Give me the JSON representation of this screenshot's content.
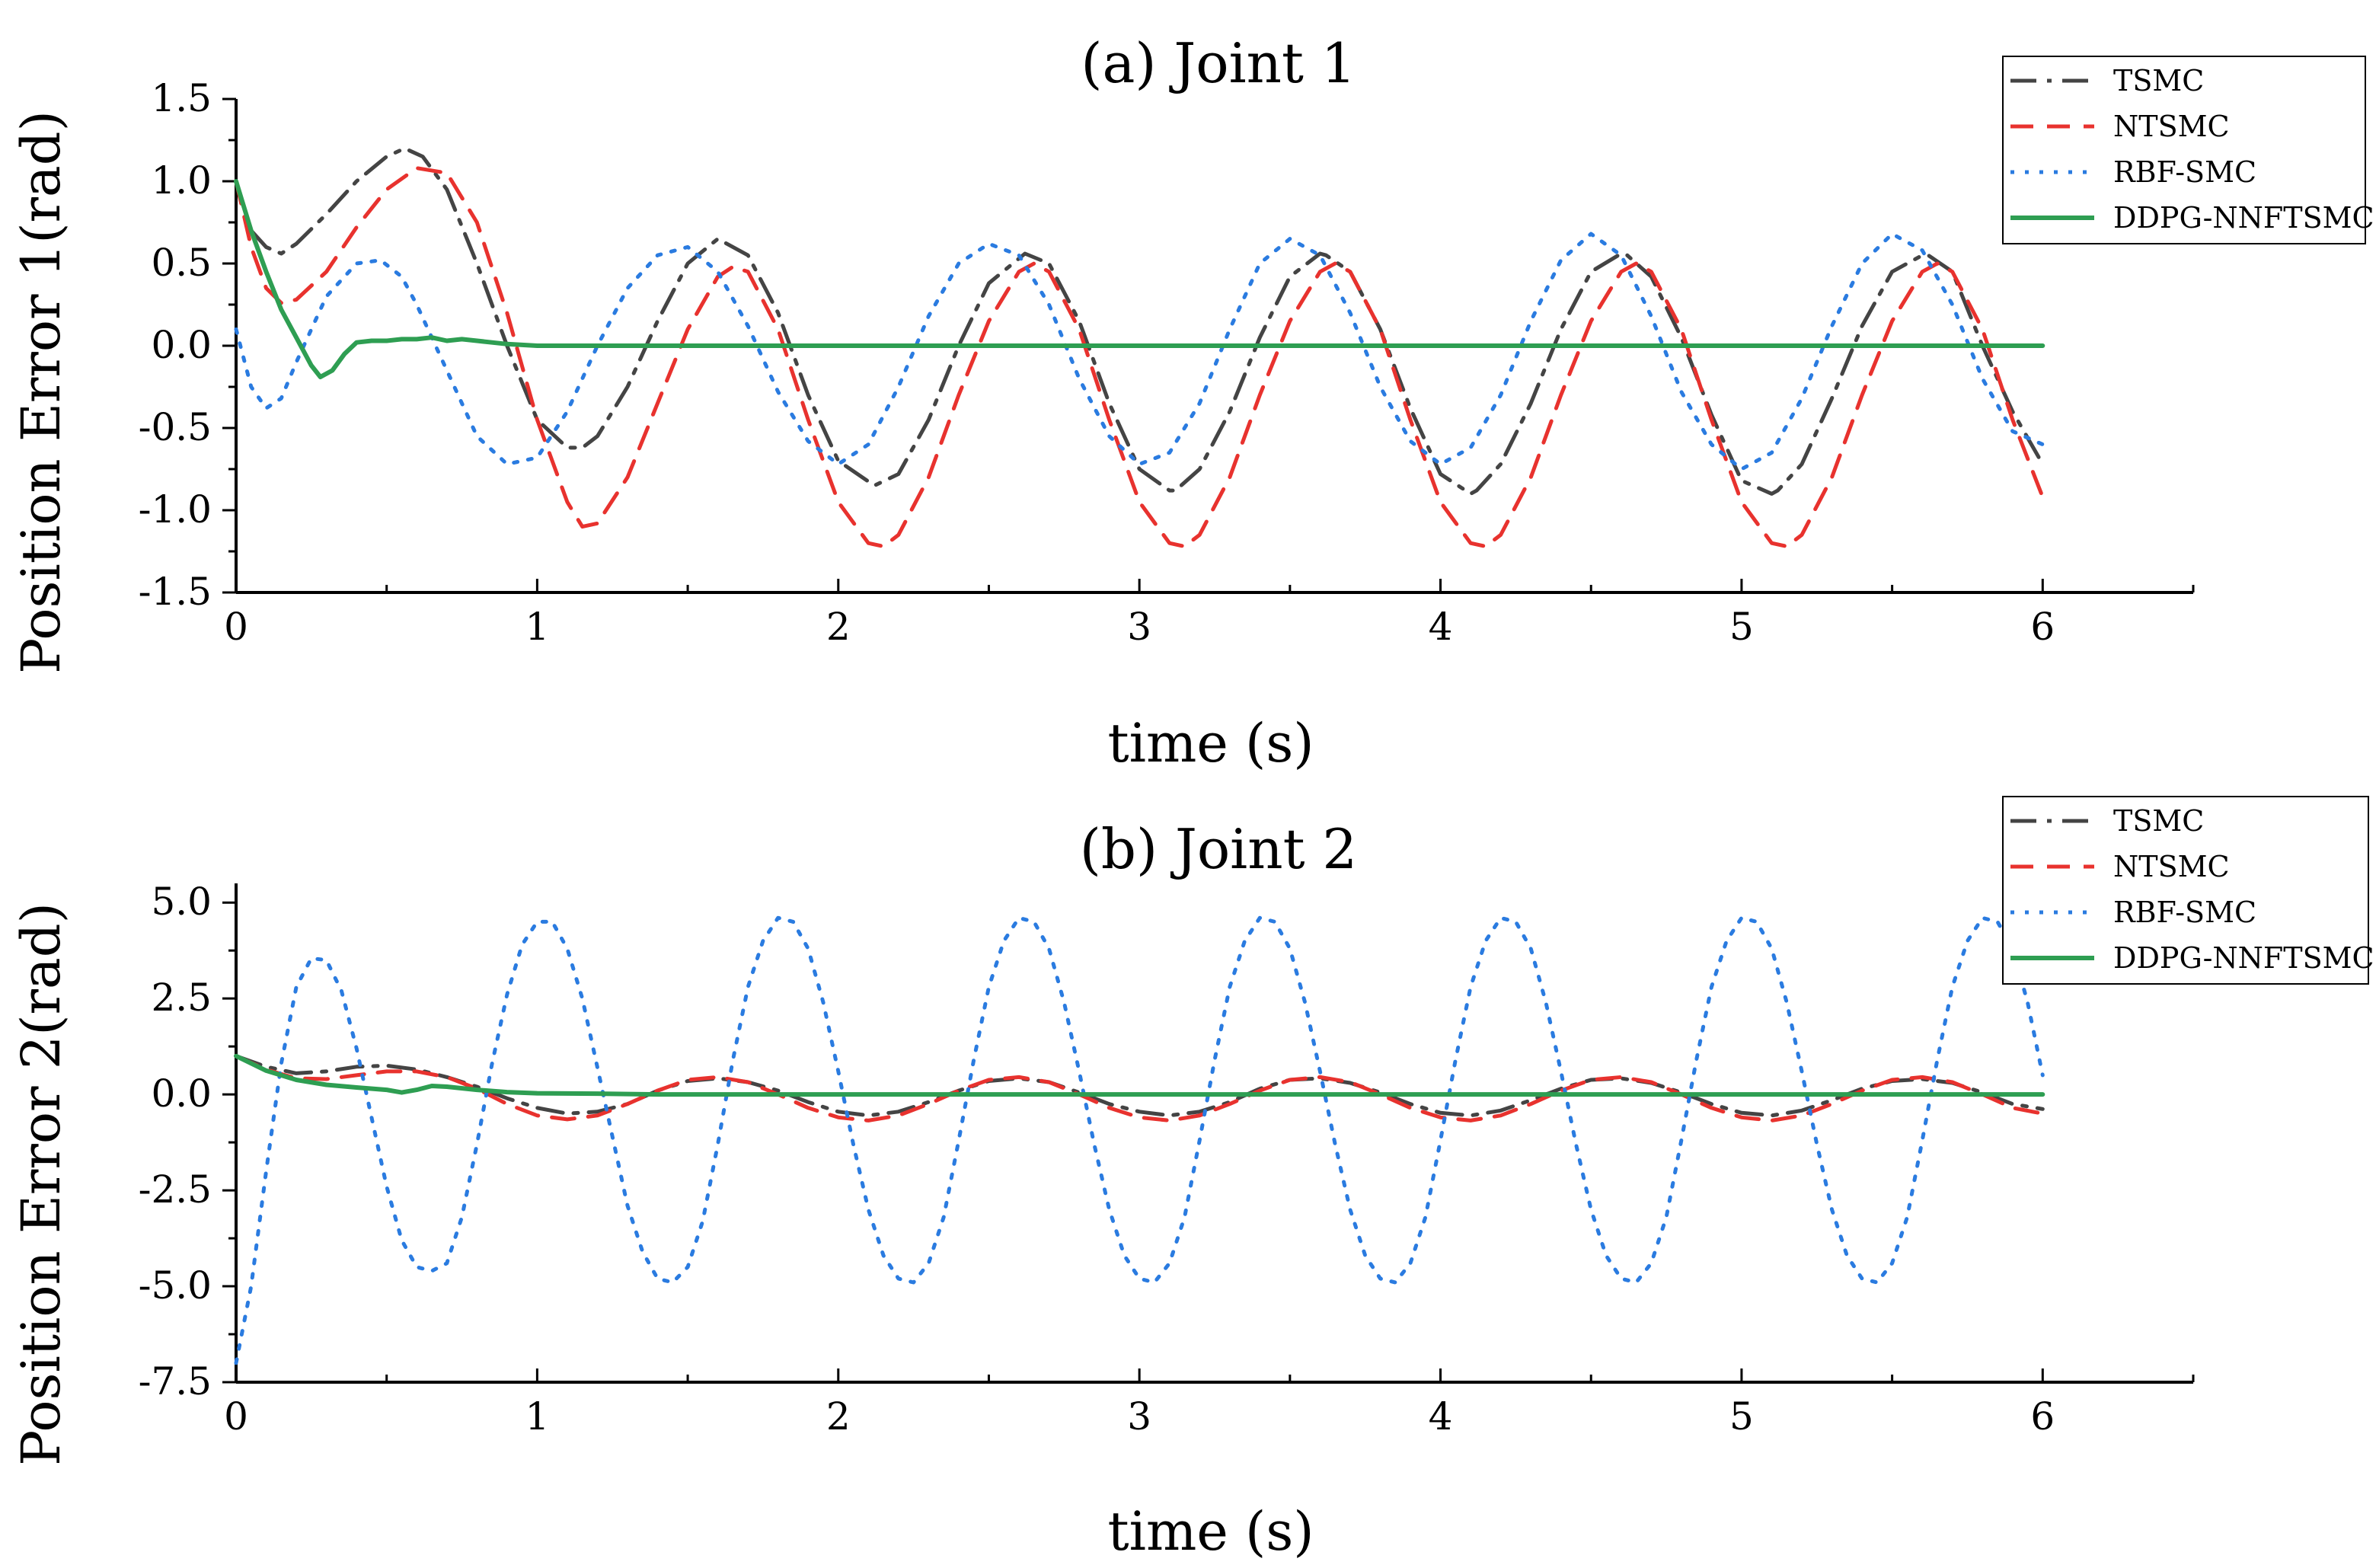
{
  "figure": {
    "colors": {
      "TSMC": "#444444",
      "NTSMC": "#e8322e",
      "RBF-SMC": "#2a7be0",
      "DDPG-NNFTSMC": "#2e9e52"
    },
    "dash_styles": {
      "TSMC": "dashdot",
      "NTSMC": "dashed",
      "RBF-SMC": "dotted",
      "DDPG-NNFTSMC": "solid"
    }
  },
  "chart_data": [
    {
      "type": "line",
      "title": "(a) Joint 1",
      "xlabel": "time (s)",
      "ylabel": "Position Error 1(rad)",
      "xlim": [
        0,
        6.5
      ],
      "ylim": [
        -1.5,
        1.5
      ],
      "xticks": [
        "0",
        "1",
        "2",
        "3",
        "4",
        "5",
        "6"
      ],
      "yticks": [
        "1.5",
        "1.0",
        "0.5",
        "0.0",
        "-0.5",
        "-1.0",
        "-1.5"
      ],
      "ytick_values": [
        1.5,
        1.0,
        0.5,
        0.0,
        -0.5,
        -1.0,
        -1.5
      ],
      "legend_position": "top-right",
      "series": [
        {
          "name": "TSMC",
          "x": [
            0,
            0.05,
            0.1,
            0.15,
            0.2,
            0.3,
            0.4,
            0.5,
            0.56,
            0.62,
            0.7,
            0.8,
            0.9,
            1.0,
            1.1,
            1.15,
            1.2,
            1.3,
            1.4,
            1.5,
            1.6,
            1.7,
            1.8,
            1.9,
            2.0,
            2.12,
            2.2,
            2.3,
            2.4,
            2.5,
            2.62,
            2.7,
            2.8,
            2.9,
            3.0,
            3.1,
            3.12,
            3.2,
            3.3,
            3.4,
            3.5,
            3.6,
            3.62,
            3.7,
            3.8,
            3.9,
            4.0,
            4.1,
            4.12,
            4.2,
            4.3,
            4.4,
            4.5,
            4.6,
            4.62,
            4.7,
            4.8,
            4.9,
            5.0,
            5.1,
            5.12,
            5.2,
            5.3,
            5.4,
            5.5,
            5.6,
            5.62,
            5.7,
            5.8,
            5.9,
            6.0
          ],
          "y": [
            1.0,
            0.7,
            0.6,
            0.56,
            0.62,
            0.8,
            1.0,
            1.15,
            1.2,
            1.15,
            0.95,
            0.5,
            0.0,
            -0.45,
            -0.62,
            -0.62,
            -0.55,
            -0.25,
            0.15,
            0.5,
            0.65,
            0.55,
            0.2,
            -0.3,
            -0.7,
            -0.85,
            -0.78,
            -0.45,
            0.0,
            0.38,
            0.56,
            0.5,
            0.15,
            -0.35,
            -0.75,
            -0.88,
            -0.88,
            -0.75,
            -0.4,
            0.05,
            0.42,
            0.56,
            0.55,
            0.45,
            0.1,
            -0.38,
            -0.78,
            -0.9,
            -0.88,
            -0.72,
            -0.35,
            0.1,
            0.45,
            0.56,
            0.55,
            0.42,
            0.05,
            -0.42,
            -0.82,
            -0.9,
            -0.88,
            -0.72,
            -0.32,
            0.12,
            0.45,
            0.55,
            0.55,
            0.45,
            0.0,
            -0.4,
            -0.72
          ]
        },
        {
          "name": "NTSMC",
          "x": [
            0,
            0.05,
            0.1,
            0.15,
            0.2,
            0.3,
            0.4,
            0.5,
            0.6,
            0.7,
            0.8,
            0.9,
            1.0,
            1.1,
            1.15,
            1.2,
            1.3,
            1.4,
            1.5,
            1.6,
            1.65,
            1.7,
            1.8,
            1.9,
            2.0,
            2.1,
            2.15,
            2.2,
            2.3,
            2.4,
            2.5,
            2.6,
            2.65,
            2.7,
            2.8,
            2.9,
            3.0,
            3.1,
            3.15,
            3.2,
            3.3,
            3.4,
            3.5,
            3.6,
            3.65,
            3.7,
            3.8,
            3.9,
            4.0,
            4.1,
            4.15,
            4.2,
            4.3,
            4.4,
            4.5,
            4.6,
            4.65,
            4.7,
            4.8,
            4.9,
            5.0,
            5.1,
            5.15,
            5.2,
            5.3,
            5.4,
            5.5,
            5.6,
            5.65,
            5.7,
            5.8,
            5.9,
            6.0
          ],
          "y": [
            1.0,
            0.6,
            0.35,
            0.26,
            0.28,
            0.45,
            0.72,
            0.95,
            1.08,
            1.05,
            0.75,
            0.2,
            -0.45,
            -0.95,
            -1.1,
            -1.08,
            -0.8,
            -0.35,
            0.1,
            0.42,
            0.48,
            0.45,
            0.1,
            -0.45,
            -0.95,
            -1.2,
            -1.22,
            -1.15,
            -0.8,
            -0.3,
            0.15,
            0.45,
            0.5,
            0.45,
            0.1,
            -0.45,
            -0.95,
            -1.2,
            -1.22,
            -1.15,
            -0.8,
            -0.3,
            0.15,
            0.45,
            0.5,
            0.45,
            0.1,
            -0.45,
            -0.95,
            -1.2,
            -1.22,
            -1.15,
            -0.8,
            -0.3,
            0.15,
            0.45,
            0.5,
            0.45,
            0.1,
            -0.45,
            -0.95,
            -1.2,
            -1.22,
            -1.15,
            -0.8,
            -0.3,
            0.15,
            0.45,
            0.5,
            0.45,
            0.1,
            -0.45,
            -0.92
          ]
        },
        {
          "name": "RBF-SMC",
          "x": [
            0,
            0.05,
            0.1,
            0.15,
            0.2,
            0.3,
            0.4,
            0.48,
            0.55,
            0.6,
            0.7,
            0.8,
            0.9,
            1.0,
            1.1,
            1.2,
            1.3,
            1.4,
            1.5,
            1.6,
            1.7,
            1.8,
            1.9,
            2.0,
            2.1,
            2.2,
            2.3,
            2.4,
            2.5,
            2.6,
            2.7,
            2.8,
            2.9,
            3.0,
            3.1,
            3.2,
            3.3,
            3.4,
            3.5,
            3.6,
            3.7,
            3.8,
            3.9,
            4.0,
            4.1,
            4.2,
            4.3,
            4.4,
            4.5,
            4.6,
            4.7,
            4.8,
            4.9,
            5.0,
            5.1,
            5.2,
            5.3,
            5.4,
            5.5,
            5.6,
            5.7,
            5.8,
            5.9,
            6.0
          ],
          "y": [
            0.1,
            -0.25,
            -0.38,
            -0.32,
            -0.1,
            0.3,
            0.5,
            0.52,
            0.42,
            0.25,
            -0.15,
            -0.55,
            -0.72,
            -0.68,
            -0.4,
            0.0,
            0.35,
            0.55,
            0.6,
            0.45,
            0.12,
            -0.28,
            -0.58,
            -0.72,
            -0.6,
            -0.25,
            0.18,
            0.5,
            0.62,
            0.55,
            0.25,
            -0.2,
            -0.55,
            -0.72,
            -0.65,
            -0.35,
            0.1,
            0.5,
            0.65,
            0.55,
            0.2,
            -0.25,
            -0.58,
            -0.72,
            -0.62,
            -0.3,
            0.15,
            0.52,
            0.68,
            0.55,
            0.18,
            -0.28,
            -0.6,
            -0.75,
            -0.65,
            -0.32,
            0.12,
            0.5,
            0.68,
            0.58,
            0.25,
            -0.2,
            -0.52,
            -0.6
          ]
        },
        {
          "name": "DDPG-NNFTSMC",
          "x": [
            0,
            0.05,
            0.1,
            0.15,
            0.2,
            0.25,
            0.28,
            0.32,
            0.36,
            0.4,
            0.45,
            0.5,
            0.55,
            0.6,
            0.65,
            0.7,
            0.75,
            0.8,
            0.85,
            0.9,
            1.0,
            1.1,
            6.0
          ],
          "y": [
            1.0,
            0.7,
            0.45,
            0.22,
            0.05,
            -0.12,
            -0.19,
            -0.15,
            -0.05,
            0.02,
            0.03,
            0.03,
            0.04,
            0.04,
            0.05,
            0.03,
            0.04,
            0.03,
            0.02,
            0.01,
            0.0,
            0.0,
            0.0
          ]
        }
      ]
    },
    {
      "type": "line",
      "title": "(b) Joint 2",
      "xlabel": "time (s)",
      "ylabel": "Position Error 2(rad)",
      "xlim": [
        0,
        6.5
      ],
      "ylim": [
        -7.5,
        5.5
      ],
      "xticks": [
        "0",
        "1",
        "2",
        "3",
        "4",
        "5",
        "6"
      ],
      "yticks": [
        "5.0",
        "2.5",
        "0.0",
        "-2.5",
        "-5.0",
        "-7.5"
      ],
      "ytick_values": [
        5.0,
        2.5,
        0.0,
        -2.5,
        -5.0,
        -7.5
      ],
      "legend_position": "top-right",
      "series": [
        {
          "name": "TSMC",
          "x": [
            0,
            0.1,
            0.2,
            0.3,
            0.4,
            0.5,
            0.6,
            0.7,
            0.8,
            0.9,
            1.0,
            1.1,
            1.2,
            1.3,
            1.4,
            1.5,
            1.6,
            1.7,
            1.8,
            1.9,
            2.0,
            2.1,
            2.2,
            2.3,
            2.4,
            2.5,
            2.6,
            2.7,
            2.8,
            2.9,
            3.0,
            3.1,
            3.2,
            3.3,
            3.4,
            3.5,
            3.6,
            3.7,
            3.8,
            3.9,
            4.0,
            4.1,
            4.2,
            4.3,
            4.4,
            4.5,
            4.6,
            4.7,
            4.8,
            4.9,
            5.0,
            5.1,
            5.2,
            5.3,
            5.4,
            5.5,
            5.6,
            5.7,
            5.8,
            5.9,
            6.0
          ],
          "y": [
            1.0,
            0.72,
            0.55,
            0.6,
            0.72,
            0.75,
            0.65,
            0.45,
            0.2,
            -0.1,
            -0.35,
            -0.5,
            -0.45,
            -0.25,
            0.1,
            0.35,
            0.42,
            0.32,
            0.1,
            -0.2,
            -0.45,
            -0.55,
            -0.45,
            -0.2,
            0.1,
            0.35,
            0.42,
            0.32,
            0.05,
            -0.25,
            -0.45,
            -0.55,
            -0.45,
            -0.2,
            0.15,
            0.38,
            0.42,
            0.3,
            0.05,
            -0.25,
            -0.48,
            -0.55,
            -0.42,
            -0.15,
            0.15,
            0.38,
            0.42,
            0.3,
            0.05,
            -0.25,
            -0.48,
            -0.55,
            -0.42,
            -0.15,
            0.15,
            0.35,
            0.4,
            0.3,
            0.05,
            -0.25,
            -0.38
          ]
        },
        {
          "name": "NTSMC",
          "x": [
            0,
            0.1,
            0.2,
            0.3,
            0.4,
            0.5,
            0.6,
            0.7,
            0.8,
            0.9,
            1.0,
            1.1,
            1.2,
            1.3,
            1.4,
            1.5,
            1.6,
            1.7,
            1.8,
            1.9,
            2.0,
            2.1,
            2.2,
            2.3,
            2.4,
            2.5,
            2.6,
            2.7,
            2.8,
            2.9,
            3.0,
            3.1,
            3.2,
            3.3,
            3.4,
            3.5,
            3.6,
            3.7,
            3.8,
            3.9,
            4.0,
            4.1,
            4.2,
            4.3,
            4.4,
            4.5,
            4.6,
            4.7,
            4.8,
            4.9,
            5.0,
            5.1,
            5.2,
            5.3,
            5.4,
            5.5,
            5.6,
            5.7,
            5.8,
            5.9,
            6.0
          ],
          "y": [
            1.0,
            0.65,
            0.42,
            0.4,
            0.5,
            0.6,
            0.6,
            0.45,
            0.15,
            -0.25,
            -0.55,
            -0.65,
            -0.55,
            -0.25,
            0.1,
            0.38,
            0.45,
            0.32,
            0.0,
            -0.35,
            -0.6,
            -0.68,
            -0.55,
            -0.25,
            0.1,
            0.38,
            0.45,
            0.32,
            0.0,
            -0.35,
            -0.6,
            -0.68,
            -0.55,
            -0.25,
            0.1,
            0.38,
            0.45,
            0.32,
            0.0,
            -0.35,
            -0.6,
            -0.68,
            -0.55,
            -0.25,
            0.1,
            0.38,
            0.45,
            0.32,
            0.0,
            -0.35,
            -0.6,
            -0.68,
            -0.55,
            -0.25,
            0.1,
            0.38,
            0.45,
            0.32,
            0.0,
            -0.35,
            -0.5
          ]
        },
        {
          "name": "RBF-SMC",
          "x": [
            0,
            0.05,
            0.1,
            0.15,
            0.2,
            0.25,
            0.3,
            0.35,
            0.4,
            0.45,
            0.5,
            0.55,
            0.6,
            0.65,
            0.7,
            0.75,
            0.8,
            0.85,
            0.9,
            0.95,
            1.0,
            1.05,
            1.1,
            1.15,
            1.2,
            1.25,
            1.3,
            1.35,
            1.4,
            1.45,
            1.5,
            1.55,
            1.6,
            1.65,
            1.7,
            1.75,
            1.8,
            1.85,
            1.9,
            1.95,
            2.0,
            2.05,
            2.1,
            2.15,
            2.2,
            2.25,
            2.3,
            2.35,
            2.4,
            2.45,
            2.5,
            2.55,
            2.6,
            2.65,
            2.7,
            2.75,
            2.8,
            2.85,
            2.9,
            2.95,
            3.0,
            3.05,
            3.1,
            3.15,
            3.2,
            3.25,
            3.3,
            3.35,
            3.4,
            3.45,
            3.5,
            3.55,
            3.6,
            3.65,
            3.7,
            3.75,
            3.8,
            3.85,
            3.9,
            3.95,
            4.0,
            4.05,
            4.1,
            4.15,
            4.2,
            4.25,
            4.3,
            4.35,
            4.4,
            4.45,
            4.5,
            4.55,
            4.6,
            4.65,
            4.7,
            4.75,
            4.8,
            4.85,
            4.9,
            4.95,
            5.0,
            5.05,
            5.1,
            5.15,
            5.2,
            5.25,
            5.3,
            5.35,
            5.4,
            5.45,
            5.5,
            5.55,
            5.6,
            5.65,
            5.7,
            5.75,
            5.8,
            5.85,
            5.9,
            5.95,
            6.0
          ],
          "y": [
            -7.0,
            -5.0,
            -2.0,
            0.8,
            2.8,
            3.55,
            3.5,
            2.7,
            1.2,
            -0.6,
            -2.4,
            -3.8,
            -4.5,
            -4.6,
            -4.4,
            -3.2,
            -1.3,
            0.8,
            2.6,
            3.9,
            4.5,
            4.5,
            3.8,
            2.5,
            0.7,
            -1.1,
            -2.9,
            -4.1,
            -4.8,
            -4.9,
            -4.5,
            -3.3,
            -1.3,
            0.9,
            2.8,
            4.0,
            4.6,
            4.5,
            3.8,
            2.4,
            0.6,
            -1.3,
            -3.0,
            -4.2,
            -4.8,
            -4.9,
            -4.4,
            -3.2,
            -1.2,
            0.9,
            2.8,
            4.0,
            4.6,
            4.5,
            3.8,
            2.4,
            0.6,
            -1.3,
            -3.0,
            -4.2,
            -4.8,
            -4.9,
            -4.4,
            -3.2,
            -1.2,
            0.9,
            2.8,
            4.0,
            4.6,
            4.5,
            3.8,
            2.4,
            0.6,
            -1.3,
            -3.0,
            -4.2,
            -4.8,
            -4.9,
            -4.4,
            -3.2,
            -1.2,
            0.9,
            2.8,
            4.0,
            4.6,
            4.5,
            3.8,
            2.4,
            0.6,
            -1.3,
            -3.0,
            -4.2,
            -4.8,
            -4.9,
            -4.4,
            -3.2,
            -1.2,
            0.9,
            2.8,
            4.0,
            4.6,
            4.5,
            3.8,
            2.4,
            0.6,
            -1.3,
            -3.0,
            -4.2,
            -4.8,
            -4.9,
            -4.4,
            -3.2,
            -1.2,
            0.9,
            2.8,
            4.0,
            4.6,
            4.5,
            3.8,
            2.4,
            0.5
          ]
        },
        {
          "name": "DDPG-NNFTSMC",
          "x": [
            0,
            0.1,
            0.2,
            0.3,
            0.4,
            0.5,
            0.55,
            0.6,
            0.65,
            0.7,
            0.8,
            0.9,
            1.0,
            1.2,
            1.4,
            6.0
          ],
          "y": [
            1.0,
            0.62,
            0.38,
            0.25,
            0.18,
            0.12,
            0.05,
            0.12,
            0.22,
            0.2,
            0.12,
            0.06,
            0.03,
            0.02,
            0.0,
            0.0
          ]
        }
      ]
    }
  ]
}
